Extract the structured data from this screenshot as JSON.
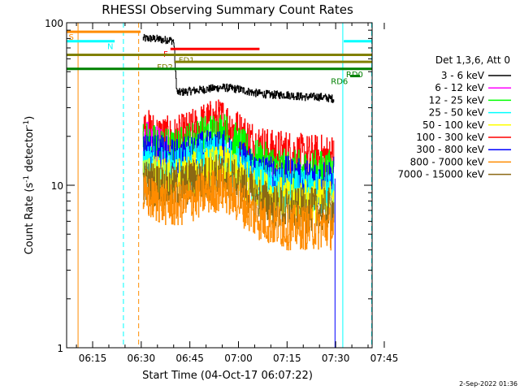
{
  "chart_data": {
    "type": "line",
    "title": "RHESSI Observing Summary Count Rates",
    "xlabel": "Start Time (04-Oct-17 06:07:22)",
    "ylabel_main": "Count Rate (s",
    "ylabel_sup": "-1",
    "ylabel_tail": " detector",
    "ylabel_sup2": "-1",
    "ylabel_close": ")",
    "footer": "2-Sep-2022 01:36",
    "yscale": "log",
    "ylim": [
      1,
      100
    ],
    "xlim_minutes": [
      6.97,
      101.25
    ],
    "x_ticks": [
      {
        "label": "06:15",
        "minute": 15
      },
      {
        "label": "06:30",
        "minute": 30
      },
      {
        "label": "06:45",
        "minute": 45
      },
      {
        "label": "07:00",
        "minute": 60
      },
      {
        "label": "07:15",
        "minute": 75
      },
      {
        "label": "07:30",
        "minute": 90
      },
      {
        "label": "07:45",
        "minute": 105
      }
    ],
    "y_ticks": [
      {
        "label": "1",
        "value": 1
      },
      {
        "label": "10",
        "value": 10
      },
      {
        "label": "100",
        "value": 100
      }
    ],
    "legend_title": "Det 1,3,6, Att 0",
    "legend": [
      {
        "name": "3 - 6 keV",
        "color": "#000000"
      },
      {
        "name": "6 - 12 keV",
        "color": "#ff00ff"
      },
      {
        "name": "12 - 25 keV",
        "color": "#00ff00"
      },
      {
        "name": "25 - 50 keV",
        "color": "#00ffff"
      },
      {
        "name": "50 - 100 keV",
        "color": "#ffff00"
      },
      {
        "name": "100 - 300 keV",
        "color": "#ff0000"
      },
      {
        "name": "300 - 800 keV",
        "color": "#0000ff"
      },
      {
        "name": "800 - 7000 keV",
        "color": "#ff8c00"
      },
      {
        "name": "7000 - 15000 keV",
        "color": "#8b6914"
      }
    ],
    "series": [
      {
        "name": "3 - 6 keV",
        "color": "#000000",
        "t_start": 30.5,
        "t_end": 89.5,
        "x": [
          30.5,
          33,
          36,
          37,
          38,
          39,
          40,
          40.5,
          41,
          45,
          50,
          55,
          60,
          65,
          70,
          75,
          80,
          85,
          89.5
        ],
        "values": [
          80,
          80,
          79,
          78,
          79,
          78,
          77,
          50,
          37,
          38,
          39,
          40,
          39,
          37,
          36,
          36,
          35,
          35,
          34
        ]
      },
      {
        "name": "100 - 300 keV",
        "color": "#ff0000",
        "t_start": 30.5,
        "t_end": 89.5,
        "x": [
          30.5,
          35,
          40,
          45,
          50,
          55,
          60,
          65,
          70,
          75,
          80,
          85,
          89.5
        ],
        "values": [
          22,
          20,
          19,
          21,
          24,
          25,
          21,
          18,
          16,
          16,
          15,
          15,
          15
        ]
      },
      {
        "name": "6 - 12 keV",
        "color": "#ff00ff",
        "t_start": 30.5,
        "t_end": 38,
        "x": [
          30.5,
          33,
          36,
          38
        ],
        "values": [
          19,
          18,
          17,
          16
        ]
      },
      {
        "name": "12 - 25 keV",
        "color": "#00ff00",
        "t_start": 30.5,
        "t_end": 89.5,
        "x": [
          30.5,
          35,
          40,
          45,
          50,
          55,
          60,
          65,
          70,
          75,
          80,
          85,
          89.5
        ],
        "values": [
          18,
          17,
          16,
          18,
          20,
          21,
          17,
          14,
          13,
          12,
          12,
          12,
          12
        ]
      },
      {
        "name": "300 - 800 keV",
        "color": "#0000ff",
        "t_start": 30.5,
        "t_end": 89.5,
        "x": [
          30.5,
          35,
          40,
          45,
          50,
          55,
          60,
          65,
          70,
          75,
          80,
          85,
          89.5
        ],
        "values": [
          16,
          15,
          14,
          15,
          16,
          16,
          14,
          12,
          11,
          11,
          10.5,
          10.5,
          11
        ]
      },
      {
        "name": "25 - 50 keV",
        "color": "#00ffff",
        "t_start": 30.5,
        "t_end": 89.5,
        "x": [
          30.5,
          35,
          40,
          45,
          50,
          55,
          60,
          65,
          70,
          75,
          80,
          85,
          89.5
        ],
        "values": [
          13,
          12.5,
          12,
          13,
          14.5,
          15,
          12.5,
          10.5,
          9.5,
          9,
          9,
          9,
          9
        ]
      },
      {
        "name": "50 - 100 keV",
        "color": "#ffff00",
        "t_start": 30.5,
        "t_end": 89.5,
        "x": [
          30.5,
          35,
          40,
          45,
          50,
          55,
          60,
          65,
          70,
          75,
          80,
          85,
          89.5
        ],
        "values": [
          11.5,
          11,
          10.5,
          11.5,
          12.5,
          13,
          11,
          9.5,
          8.5,
          8,
          8,
          8,
          8
        ]
      },
      {
        "name": "7000 - 15000 keV",
        "color": "#8b6914",
        "t_start": 30.5,
        "t_end": 89.5,
        "x": [
          30.5,
          35,
          40,
          45,
          50,
          55,
          60,
          65,
          70,
          75,
          80,
          85,
          89.5
        ],
        "values": [
          10.5,
          10,
          9.5,
          10.5,
          11,
          11.5,
          10,
          8.5,
          7.5,
          7,
          7,
          7,
          7
        ]
      },
      {
        "name": "800 - 7000 keV",
        "color": "#ff8c00",
        "t_start": 30.5,
        "t_end": 89.5,
        "x": [
          30.5,
          35,
          40,
          45,
          50,
          55,
          60,
          65,
          70,
          75,
          80,
          85,
          89.5
        ],
        "values": [
          8.5,
          8,
          7.5,
          8,
          9,
          9.5,
          8,
          6.5,
          5.8,
          5.5,
          5.5,
          5.5,
          5.5
        ]
      }
    ],
    "drop_line": {
      "color": "#0000ff",
      "minute": 89.8,
      "from_value": 11,
      "to_value": 1
    },
    "status_bars": [
      {
        "label": "S",
        "color": "#ff8c00",
        "t_start": 7,
        "t_end": 29.8,
        "value": 88,
        "label_minute": 7.6,
        "label_anchor": "start"
      },
      {
        "label": "N",
        "color": "#00ffff",
        "t_start": 7,
        "t_end": 21.8,
        "value": 77,
        "label_minute": 19.5,
        "label_anchor": "start"
      },
      {
        "label": "",
        "color": "#00ffff",
        "t_start": 92.5,
        "t_end": 101.2,
        "value": 77
      },
      {
        "label": "F",
        "color": "#ff0000",
        "t_start": 39,
        "t_end": 66.5,
        "value": 69,
        "label_minute": 36.8,
        "label_anchor": "start"
      },
      {
        "label": "FD1",
        "color": "#808000",
        "t_start": 7,
        "t_end": 101.2,
        "value": 63.5,
        "label_minute": 41.5,
        "label_anchor": "start"
      },
      {
        "label": "FD2",
        "color": "#808000",
        "t_start": 40.3,
        "t_end": 101.2,
        "value": 57.5,
        "label_minute": 39.8,
        "label_anchor": "end"
      },
      {
        "label": "RD0",
        "color": "#008000",
        "t_start": 7,
        "t_end": 101.2,
        "value": 52,
        "label_minute": 93.2,
        "label_anchor": "start"
      },
      {
        "label": "RD6",
        "color": "#008000",
        "t_start": 94.5,
        "t_end": 97.5,
        "value": 47,
        "label_minute": 93.8,
        "label_anchor": "end"
      }
    ],
    "vlines": [
      {
        "minute": 10.5,
        "color": "#ff8c00",
        "style": "solid"
      },
      {
        "minute": 24.5,
        "color": "#00ffff",
        "style": "dashed"
      },
      {
        "minute": 29.2,
        "color": "#ff8c00",
        "style": "dashed"
      },
      {
        "minute": 92.2,
        "color": "#00ffff",
        "style": "solid"
      },
      {
        "minute": 101.1,
        "color": "#00ffff",
        "style": "dashed"
      }
    ]
  }
}
